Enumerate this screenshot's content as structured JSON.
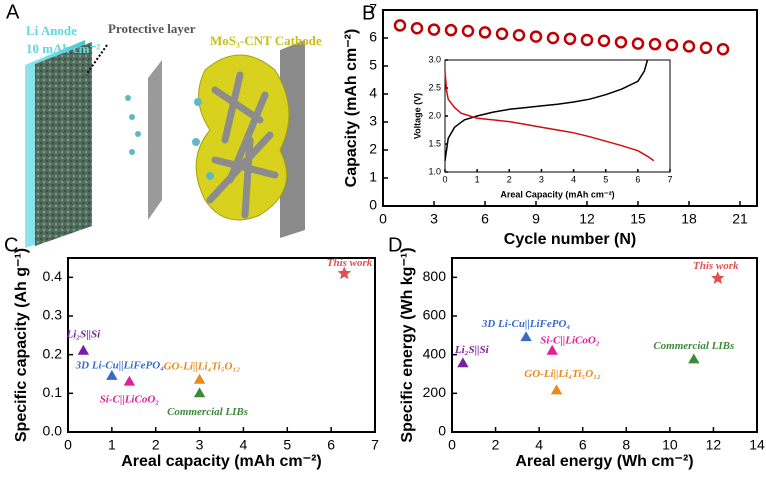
{
  "illustration": {
    "panel": "A",
    "texts": [
      "Li Anode",
      "10 mAh cm⁻²",
      "Protective layer",
      "MoS₃-CNT Cathode"
    ]
  },
  "chart_data": [
    {
      "type": "line",
      "panel": "B",
      "marker": "open-circle",
      "xlabel": "Cycle number (N)",
      "ylabel": "Capacity (mAh cm⁻²)",
      "xlim": [
        0,
        22
      ],
      "xticks": [
        0,
        3,
        6,
        9,
        12,
        15,
        18,
        21
      ],
      "ylim": [
        0,
        7
      ],
      "yticks": [
        0,
        1,
        2,
        3,
        4,
        5,
        6,
        7
      ],
      "series": [
        {
          "color": "#c00000",
          "x": [
            1,
            2,
            3,
            4,
            5,
            6,
            7,
            8,
            9,
            10,
            11,
            12,
            13,
            14,
            15,
            16,
            17,
            18,
            19,
            20
          ],
          "y": [
            6.45,
            6.35,
            6.3,
            6.28,
            6.25,
            6.2,
            6.15,
            6.1,
            6.05,
            6.0,
            5.97,
            5.93,
            5.9,
            5.85,
            5.8,
            5.78,
            5.75,
            5.7,
            5.65,
            5.6
          ]
        }
      ]
    },
    {
      "type": "line",
      "xlabel": "Areal Capacity (mAh cm⁻²)",
      "ylabel": "Voltage (V)",
      "xlim": [
        0,
        7
      ],
      "xticks": [
        0,
        1,
        2,
        3,
        4,
        5,
        6,
        7
      ],
      "ylim": [
        1,
        3
      ],
      "yticks": [
        {
          "value": 1,
          "label": "1.0"
        },
        1.5,
        {
          "value": 2,
          "label": "2.0"
        },
        2.5,
        {
          "value": 3,
          "label": "3.0"
        }
      ],
      "series": [
        {
          "color": "#000000",
          "x": [
            0,
            0.1,
            0.3,
            0.6,
            1,
            1.5,
            2,
            2.5,
            3,
            3.5,
            4,
            4.5,
            5,
            5.5,
            6,
            6.2,
            6.3
          ],
          "y": [
            1.2,
            1.6,
            1.8,
            1.93,
            2.0,
            2.07,
            2.12,
            2.15,
            2.18,
            2.21,
            2.25,
            2.3,
            2.38,
            2.48,
            2.62,
            2.8,
            3.0
          ]
        },
        {
          "color": "#d01010",
          "x": [
            0,
            0.05,
            0.1,
            0.3,
            0.5,
            1,
            1.5,
            2,
            2.5,
            3,
            3.5,
            4,
            4.5,
            5,
            5.5,
            6,
            6.3,
            6.5
          ],
          "y": [
            2.8,
            2.45,
            2.3,
            2.15,
            2.05,
            1.96,
            1.93,
            1.9,
            1.85,
            1.8,
            1.75,
            1.7,
            1.63,
            1.55,
            1.47,
            1.38,
            1.28,
            1.2
          ]
        }
      ]
    },
    {
      "type": "scatter",
      "panel": "C",
      "xlabel": "Areal capacity (mAh cm⁻²)",
      "ylabel": "Specific capacity (Ah g⁻¹)",
      "xlim": [
        0,
        7
      ],
      "xticks": [
        0,
        1,
        2,
        3,
        4,
        5,
        6,
        7
      ],
      "ylim": [
        0,
        0.45
      ],
      "yticks": [
        {
          "value": 0,
          "label": "0.0"
        },
        0.1,
        0.2,
        0.3,
        0.4
      ],
      "points": [
        {
          "label": "Li₂S||Si",
          "x": 0.35,
          "y": 0.21,
          "color": "#7b1fa2",
          "marker": "triangle"
        },
        {
          "label": "3D Li-Cu||LiFePO₄",
          "x": 1.0,
          "y": 0.145,
          "color": "#3a6bc4",
          "marker": "triangle"
        },
        {
          "label": "Si-C||LiCoO₂",
          "x": 1.4,
          "y": 0.13,
          "color": "#e0209a",
          "marker": "triangle"
        },
        {
          "label": "GO-Li||Li₄Ti₅O₁₂",
          "x": 3.0,
          "y": 0.135,
          "color": "#e88a1a",
          "marker": "triangle"
        },
        {
          "label": "Commercial LIBs",
          "x": 3.0,
          "y": 0.1,
          "color": "#3d8a3a",
          "marker": "triangle"
        },
        {
          "label": "This work",
          "x": 6.3,
          "y": 0.41,
          "color": "#e05050",
          "marker": "star"
        }
      ]
    },
    {
      "type": "scatter",
      "panel": "D",
      "xlabel": "Areal energy (Wh cm⁻²)",
      "ylabel": "Specific energy (Wh kg⁻¹)",
      "xlim": [
        0,
        14
      ],
      "xticks": [
        0,
        2,
        4,
        6,
        8,
        10,
        12,
        14
      ],
      "ylim": [
        0,
        900
      ],
      "yticks": [
        0,
        200,
        400,
        600,
        800
      ],
      "points": [
        {
          "label": "Li₂S||Si",
          "x": 0.5,
          "y": 355,
          "color": "#7b1fa2",
          "marker": "triangle"
        },
        {
          "label": "3D Li-Cu||LiFePO₄",
          "x": 3.4,
          "y": 490,
          "color": "#3a6bc4",
          "marker": "triangle"
        },
        {
          "label": "Si-C||LiCoO₂",
          "x": 4.6,
          "y": 420,
          "color": "#e0209a",
          "marker": "triangle"
        },
        {
          "label": "GO-Li||Li₄Ti₅O₁₂",
          "x": 4.8,
          "y": 215,
          "color": "#e88a1a",
          "marker": "triangle"
        },
        {
          "label": "Commercial LIBs",
          "x": 11.1,
          "y": 375,
          "color": "#3d8a3a",
          "marker": "triangle"
        },
        {
          "label": "This work",
          "x": 12.2,
          "y": 795,
          "color": "#e05050",
          "marker": "star"
        }
      ]
    }
  ]
}
